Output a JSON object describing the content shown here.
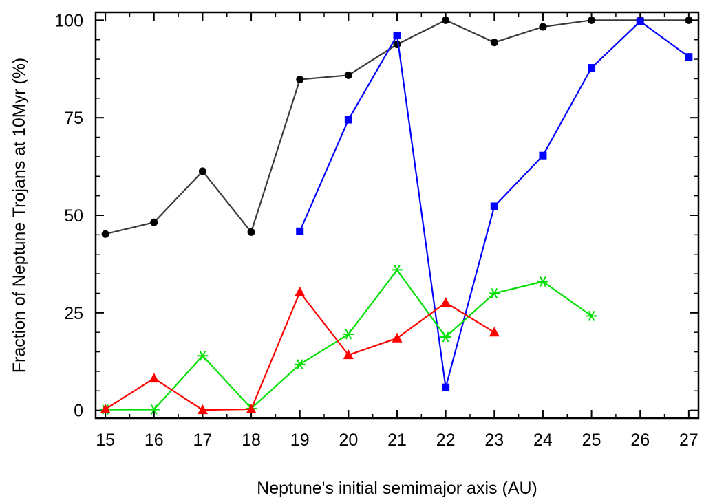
{
  "chart_data": {
    "type": "line",
    "title": "",
    "xlabel": "Neptune's initial semimajor axis (AU)",
    "ylabel": "Fraction of Neptune Trojans at 10Myr (%)",
    "xlim": [
      14.8,
      27.2
    ],
    "ylim": [
      -2,
      102
    ],
    "xticks": [
      15,
      16,
      17,
      18,
      19,
      20,
      21,
      22,
      23,
      24,
      25,
      26,
      27
    ],
    "yticks": [
      0,
      25,
      50,
      75,
      100
    ],
    "grid": false,
    "legend": "none",
    "series": [
      {
        "color": "#000000",
        "line_color": "#3a3a3a",
        "marker": "circle",
        "x": [
          15,
          16,
          17,
          18,
          19,
          20,
          21,
          22,
          23,
          24,
          25,
          26,
          27
        ],
        "y": [
          45.2,
          48.2,
          61.3,
          45.7,
          84.8,
          85.9,
          93.8,
          100,
          94.3,
          98.3,
          100,
          100,
          100
        ]
      },
      {
        "color": "#0000ff",
        "marker": "square",
        "x": [
          19,
          20,
          21,
          22,
          23,
          24,
          25,
          26,
          27
        ],
        "y": [
          45.9,
          74.5,
          96.1,
          5.9,
          52.3,
          65.3,
          87.8,
          99.7,
          90.6
        ]
      },
      {
        "color": "#00e000",
        "marker": "asterisk",
        "x": [
          15,
          16,
          17,
          18,
          19,
          20,
          21,
          22,
          23,
          24,
          25
        ],
        "y": [
          0.2,
          0.2,
          14.0,
          0.5,
          11.8,
          19.5,
          36.0,
          18.8,
          30.0,
          33.0,
          24.2
        ]
      },
      {
        "color": "#ff0000",
        "marker": "triangle",
        "x": [
          15,
          16,
          17,
          18,
          19,
          20,
          21,
          22,
          23
        ],
        "y": [
          0.3,
          8.2,
          0.1,
          0.3,
          30.3,
          14.2,
          18.5,
          27.6,
          20.0
        ]
      }
    ]
  }
}
